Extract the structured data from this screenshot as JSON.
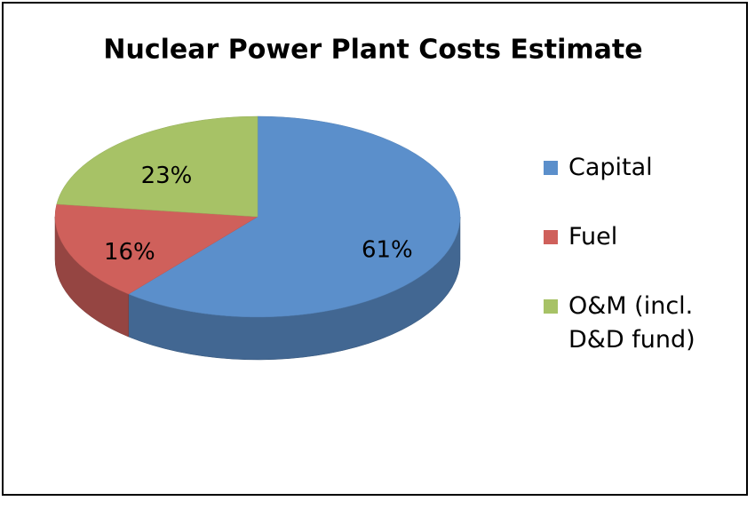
{
  "chart_data": {
    "type": "pie",
    "title": "Nuclear Power Plant Costs Estimate",
    "categories": [
      "Capital",
      "Fuel",
      "O&M (incl. D&D fund)"
    ],
    "values": [
      61,
      16,
      23
    ],
    "value_labels": [
      "61%",
      "16%",
      "23%"
    ],
    "colors": [
      "#5b8fcb",
      "#cf605b",
      "#a7c266"
    ],
    "legend": "right"
  }
}
